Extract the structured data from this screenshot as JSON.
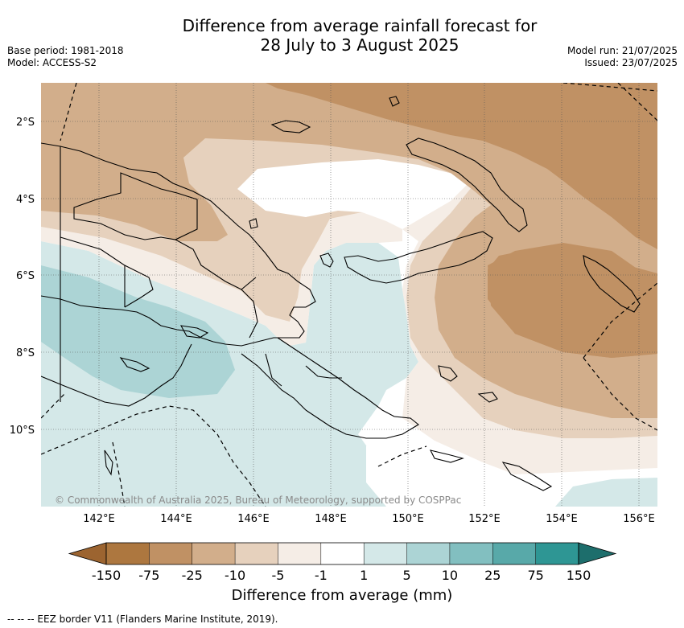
{
  "header": {
    "title_line1": "Difference from average rainfall forecast for",
    "title_line2": "28 July to 3 August 2025",
    "base_period": "Base period: 1981-2018",
    "model": "Model: ACCESS-S2",
    "model_run": "Model run: 21/07/2025",
    "issued": "Issued: 23/07/2025"
  },
  "map": {
    "lon_labels": [
      "142°E",
      "144°E",
      "146°E",
      "148°E",
      "150°E",
      "152°E",
      "154°E",
      "156°E"
    ],
    "lat_labels": [
      "2°S",
      "4°S",
      "6°S",
      "8°S",
      "10°S"
    ],
    "lon_values": [
      142,
      144,
      146,
      148,
      150,
      152,
      154,
      156
    ],
    "lat_values": [
      -2,
      -4,
      -6,
      -8,
      -10
    ],
    "copyright": "© Commonwealth of Australia 2025, Bureau of Meteorology, supported by COSPPac"
  },
  "colorbar": {
    "ticks": [
      "-150",
      "-75",
      "-25",
      "-10",
      "-5",
      "-1",
      "1",
      "5",
      "10",
      "25",
      "75",
      "150"
    ],
    "colors": [
      "#9c6430",
      "#ad773f",
      "#c09164",
      "#d2ae8b",
      "#e6d1bd",
      "#f5ede6",
      "#ffffff",
      "#d4e8e8",
      "#acd4d5",
      "#82bfc0",
      "#58a9a9",
      "#2e9694",
      "#1d6e6c"
    ],
    "title": "Difference from average (mm)"
  },
  "footer": {
    "legend": "-- -- -- EEZ border V11 (Flanders Marine Institute, 2019)."
  }
}
